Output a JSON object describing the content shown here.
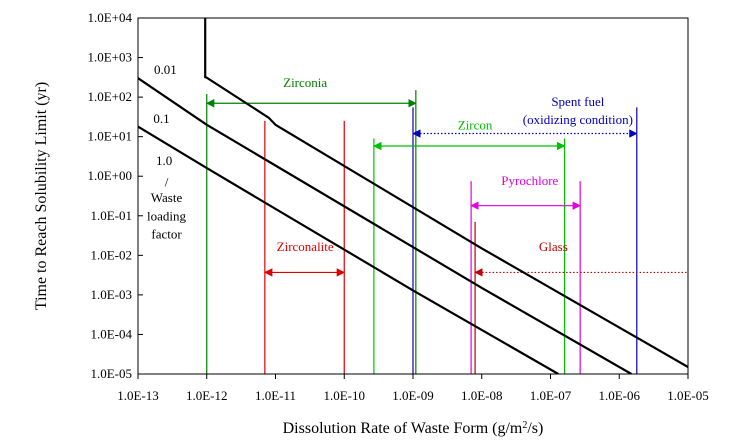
{
  "chart_data": {
    "type": "line",
    "title": "",
    "xlabel_main": "Dissolution Rate of Waste Form (g/m",
    "xlabel_sup": "2",
    "xlabel_end": "/s)",
    "ylabel": "Time to Reach Solubility Limit (yr)",
    "xscale": "log",
    "yscale": "log",
    "xlim": [
      1e-13,
      1e-05
    ],
    "ylim": [
      1e-05,
      10000.0
    ],
    "x_tick_values": [
      1e-13,
      1e-12,
      1e-11,
      1e-10,
      1e-09,
      1e-08,
      1e-07,
      1e-06,
      1e-05
    ],
    "x_tick_labels": [
      "1.0E-13",
      "1.0E-12",
      "1.0E-11",
      "1.0E-10",
      "1.0E-09",
      "1.0E-08",
      "1.0E-07",
      "1.0E-06",
      "1.0E-05"
    ],
    "y_tick_values": [
      10000.0,
      1000.0,
      100.0,
      10.0,
      1.0,
      0.1,
      0.01,
      0.001,
      0.0001,
      1e-05
    ],
    "y_tick_labels": [
      "1.0E+04",
      "1.0E+03",
      "1.0E+02",
      "1.0E+01",
      "1.0E+00",
      "1.0E-01",
      "1.0E-02",
      "1.0E-03",
      "1.0E-04",
      "1.0E-05"
    ],
    "series": [
      {
        "name": "0.01",
        "color": "#000000",
        "points": [
          [
            9.5e-13,
            10000.0
          ],
          [
            9.5e-13,
            320
          ],
          [
            1e-12,
            310
          ],
          [
            8e-12,
            30
          ],
          [
            1e-11,
            20
          ],
          [
            1e-08,
            0.015
          ],
          [
            1e-05,
            1.5e-05
          ]
        ]
      },
      {
        "name": "0.1",
        "color": "#000000",
        "points": [
          [
            1e-13,
            300
          ],
          [
            1e-12,
            20
          ],
          [
            1e-08,
            0.0015
          ],
          [
            1.5e-06,
            1e-05
          ]
        ]
      },
      {
        "name": "1.0",
        "color": "#000000",
        "points": [
          [
            1e-13,
            18
          ],
          [
            1e-12,
            1.6
          ],
          [
            1e-09,
            0.0013
          ],
          [
            1.3e-07,
            1e-05
          ]
        ]
      }
    ],
    "curve_labels": [
      {
        "text": "0.01",
        "x": 2.5e-13,
        "y": 380
      },
      {
        "text": "0.1",
        "x": 2.2e-13,
        "y": 22
      },
      {
        "text": "1.0",
        "x": 2.4e-13,
        "y": 1.9
      },
      {
        "text": "/",
        "x": 2.6e-13,
        "y": 0.55
      },
      {
        "text": "Waste",
        "x": 2.6e-13,
        "y": 0.22
      },
      {
        "text": "loading",
        "x": 2.6e-13,
        "y": 0.075
      },
      {
        "text": "factor",
        "x": 2.6e-13,
        "y": 0.027
      }
    ],
    "waste_forms": [
      {
        "name": "Zirconia",
        "color": "#008000",
        "x_low": 1e-12,
        "x_high": 1.1e-09,
        "arrow_y": 70,
        "arrow_dir": "both",
        "label_x": 2.7e-11,
        "label_y": 180,
        "label_lines": [
          "Zirconia"
        ],
        "lines": [
          {
            "x": 1e-12,
            "ytop": 120
          },
          {
            "x": 1.1e-09,
            "ytop": 150
          }
        ]
      },
      {
        "name": "Spent fuel (oxidizing condition)",
        "color": "#0000c0",
        "x_low": 1e-09,
        "x_high": 1.8e-06,
        "arrow_y": 12,
        "arrow_dir": "both",
        "arrow_style": "dotted",
        "label_x": 2.5e-07,
        "label_y": 60,
        "label_lines": [
          "Spent fuel",
          "(oxidizing condition)"
        ],
        "lines": [
          {
            "x": 1e-09,
            "ytop": 55
          },
          {
            "x": 1.8e-06,
            "ytop": 55
          }
        ]
      },
      {
        "name": "Zircon",
        "color": "#00c000",
        "x_low": 2.7e-10,
        "x_high": 1.6e-07,
        "arrow_y": 5.8,
        "arrow_dir": "both",
        "label_x": 8e-09,
        "label_y": 15,
        "label_lines": [
          "Zircon"
        ],
        "lines": [
          {
            "x": 2.7e-10,
            "ytop": 9
          },
          {
            "x": 1.6e-07,
            "ytop": 9
          }
        ]
      },
      {
        "name": "Pyrochlore",
        "color": "#e000e0",
        "x_low": 7e-09,
        "x_high": 2.7e-07,
        "arrow_y": 0.18,
        "arrow_dir": "both",
        "label_x": 5e-08,
        "label_y": 0.6,
        "label_lines": [
          "Pyrochlore"
        ],
        "lines": [
          {
            "x": 7e-09,
            "ytop": 0.75
          },
          {
            "x": 2.7e-07,
            "ytop": 0.75
          }
        ]
      },
      {
        "name": "Zirconalite",
        "color": "#e00000",
        "x_low": 7e-12,
        "x_high": 1e-10,
        "arrow_y": 0.0037,
        "arrow_dir": "both",
        "label_x": 2.7e-11,
        "label_y": 0.013,
        "label_lines": [
          "Zirconalite"
        ],
        "lines": [
          {
            "x": 7e-12,
            "ytop": 25
          },
          {
            "x": 1e-10,
            "ytop": 25
          }
        ]
      },
      {
        "name": "Glass",
        "color": "#c00000",
        "x_low": 8e-09,
        "x_high": 1e-05,
        "arrow_y": 0.0037,
        "arrow_dir": "left",
        "arrow_style": "dotted",
        "label_x": 1.1e-07,
        "label_y": 0.013,
        "label_lines": [
          "Glass"
        ],
        "lines": [
          {
            "x": 8e-09,
            "ytop": 0.07
          }
        ]
      }
    ]
  }
}
